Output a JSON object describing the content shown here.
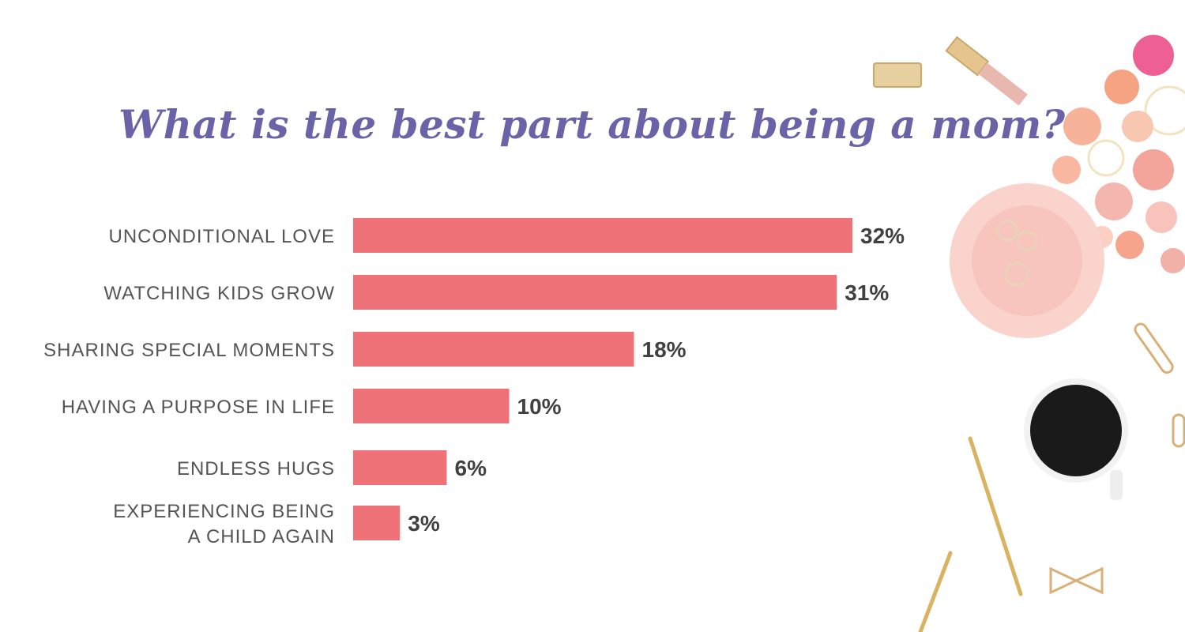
{
  "title": "What is the best part about being a mom?",
  "chart_data": {
    "type": "bar",
    "orientation": "horizontal",
    "categories": [
      "UNCONDITIONAL LOVE",
      "WATCHING KIDS GROW",
      "SHARING SPECIAL MOMENTS",
      "HAVING A PURPOSE IN LIFE",
      "ENDLESS HUGS",
      [
        "EXPERIENCING BEING",
        "A CHILD AGAIN"
      ]
    ],
    "values": [
      32,
      31,
      18,
      10,
      6,
      3
    ],
    "value_labels": [
      "32%",
      "31%",
      "18%",
      "10%",
      "6%",
      "3%"
    ],
    "unit": "%",
    "xlim": [
      0,
      32
    ],
    "grid": false,
    "legend": "none",
    "bar_color": "#f07279"
  },
  "colors": {
    "title": "#6a63a8",
    "category_text": "#555555",
    "value_text": "#404040",
    "background": "#ffffff"
  },
  "decorations": [
    "lipstick",
    "flower-bouquet",
    "pink-dish-with-rings",
    "paper-clip",
    "coffee-cup",
    "gold-pen",
    "bow-clip"
  ]
}
